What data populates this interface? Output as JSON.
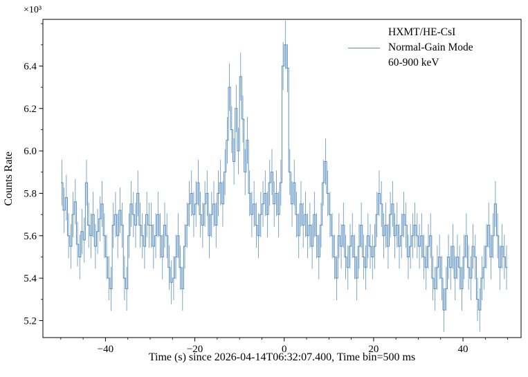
{
  "figure": {
    "background": "#ffffff",
    "axis_color": "#000000",
    "line_color": "#5b8fbe"
  },
  "labels": {
    "ylabel": "Counts Rate",
    "xlabel": "Time (s) since 2026-04-14T06:32:07.400, Time bin=500 ms",
    "y_offset": "×10³"
  },
  "legend": {
    "line1": "HXMT/HE-CsI",
    "line2": "Normal-Gain Mode",
    "line3": "60-900 keV"
  },
  "chart_data": {
    "type": "line",
    "style": "step-histogram-with-poisson-errorbars",
    "title": "",
    "xlabel": "Time (s) since 2026-04-14T06:32:07.400, Time bin=500 ms",
    "ylabel": "Counts Rate",
    "y_scale_factor": 1000,
    "y_offset_label": "×10³",
    "xlim": [
      -54,
      53
    ],
    "ylim": [
      5120,
      6620
    ],
    "xticks": [
      -40,
      -20,
      0,
      20,
      40
    ],
    "xtick_labels": [
      "−40",
      "−20",
      "0",
      "20",
      "40"
    ],
    "x_minor_step": 5,
    "yticks": [
      5200,
      5400,
      5600,
      5800,
      6000,
      6200,
      6400
    ],
    "ytick_labels": [
      "5.2",
      "5.4",
      "5.6",
      "5.8",
      "6.0",
      "6.2",
      "6.4"
    ],
    "y_minor_step": 100,
    "grid": false,
    "legend_position": "upper right",
    "bin_width_s": 0.5,
    "x_start": -49.75,
    "error_model": "poisson_rate_err_sqrt(rate/bin_width)",
    "series": [
      {
        "name": "HXMT/HE-CsI Normal-Gain Mode 60-900 keV",
        "values": [
          5850,
          5720,
          5780,
          5600,
          5550,
          5700,
          5760,
          5560,
          5500,
          5620,
          5580,
          5850,
          5650,
          5600,
          5700,
          5550,
          5620,
          5680,
          5750,
          5600,
          5500,
          5400,
          5350,
          5650,
          5700,
          5600,
          5720,
          5650,
          5400,
          5350,
          5600,
          5750,
          5700,
          5650,
          5800,
          5650,
          5600,
          5550,
          5700,
          5650,
          5650,
          5550,
          5600,
          5700,
          5600,
          5500,
          5650,
          5600,
          5450,
          5380,
          5400,
          5500,
          5600,
          5450,
          5350,
          5550,
          5650,
          5750,
          5800,
          5700,
          5750,
          5850,
          5700,
          5650,
          5750,
          5800,
          5600,
          5700,
          5750,
          5650,
          5800,
          5850,
          5750,
          5900,
          6050,
          6300,
          6100,
          5950,
          6200,
          6000,
          6350,
          6150,
          5900,
          6050,
          5800,
          5700,
          5750,
          5650,
          5600,
          5700,
          5750,
          5800,
          5700,
          5850,
          5900,
          5750,
          5800,
          5700,
          5850,
          6400,
          6500,
          6390,
          5900,
          5750,
          5850,
          5700,
          5600,
          5750,
          5650,
          5700,
          5600,
          5650,
          5550,
          5700,
          5600,
          5500,
          5650,
          5850,
          5950,
          5800,
          5700,
          5600,
          5500,
          5400,
          5600,
          5550,
          5650,
          5500,
          5450,
          5550,
          5600,
          5500,
          5400,
          5550,
          5650,
          5500,
          5450,
          5600,
          5550,
          5500,
          5550,
          5700,
          5800,
          5750,
          5600,
          5650,
          5550,
          5700,
          5750,
          5600,
          5650,
          5550,
          5600,
          5700,
          5650,
          5500,
          5550,
          5600,
          5650,
          5600,
          5550,
          5600,
          5500,
          5450,
          5550,
          5600,
          5400,
          5350,
          5450,
          5500,
          5400,
          5250,
          5350,
          5500,
          5450,
          5550,
          5400,
          5500,
          5450,
          5350,
          5500,
          5600,
          5450,
          5400,
          5550,
          5500,
          5300,
          5250,
          5400,
          5450,
          5550,
          5650,
          5500,
          5600,
          5750,
          5600,
          5450,
          5550,
          5500,
          5450
        ]
      }
    ]
  }
}
